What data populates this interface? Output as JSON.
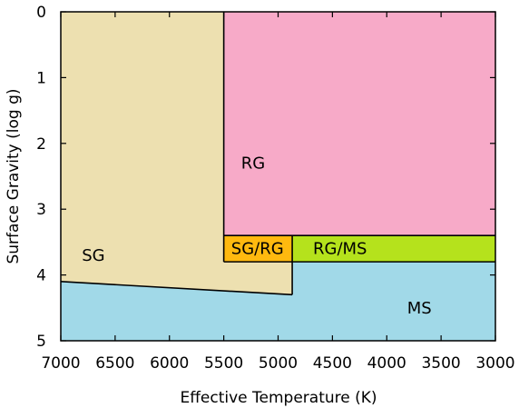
{
  "chart_data": {
    "type": "area",
    "xlabel": "Effective Temperature (K)",
    "ylabel": "Surface Gravity (log g)",
    "xlim": [
      7000,
      3000
    ],
    "ylim": [
      0,
      5
    ],
    "x_reversed": true,
    "y_inverted": true,
    "grid": false,
    "legend": "none",
    "x_ticks": [
      7000,
      6500,
      6000,
      5500,
      5000,
      4500,
      4000,
      3500,
      3000
    ],
    "y_ticks": [
      0,
      1,
      2,
      3,
      4,
      5
    ],
    "x_tick_labels": [
      "7000",
      "6500",
      "6000",
      "5500",
      "5000",
      "4500",
      "4000",
      "3500",
      "3000"
    ],
    "y_tick_labels": [
      "0",
      "1",
      "2",
      "3",
      "4",
      "5"
    ],
    "regions": [
      {
        "name": "MS",
        "color": "#a1d9e8",
        "polygon": [
          [
            7000,
            4.1
          ],
          [
            4870,
            4.3
          ],
          [
            4870,
            3.8
          ],
          [
            3000,
            3.8
          ],
          [
            3000,
            5.0
          ],
          [
            7000,
            5.0
          ]
        ],
        "label": "MS",
        "label_at": [
          3700,
          4.5
        ]
      },
      {
        "name": "SG",
        "color": "#ede0b0",
        "polygon": [
          [
            7000,
            0
          ],
          [
            5500,
            0
          ],
          [
            5500,
            3.8
          ],
          [
            4870,
            3.8
          ],
          [
            4870,
            4.3
          ],
          [
            7000,
            4.1
          ]
        ],
        "label": "SG",
        "label_at": [
          6700,
          3.7
        ]
      },
      {
        "name": "RG",
        "color": "#f7aac8",
        "polygon": [
          [
            5500,
            0
          ],
          [
            3000,
            0
          ],
          [
            3000,
            3.4
          ],
          [
            5500,
            3.4
          ]
        ],
        "label": "RG",
        "label_at": [
          5230,
          2.3
        ]
      },
      {
        "name": "SG/RG",
        "color": "#ffb90f",
        "polygon": [
          [
            5500,
            3.4
          ],
          [
            4870,
            3.4
          ],
          [
            4870,
            3.8
          ],
          [
            5500,
            3.8
          ]
        ],
        "label": "SG/RG",
        "label_at": [
          5190,
          3.6
        ]
      },
      {
        "name": "RG/MS",
        "color": "#b5e21c",
        "polygon": [
          [
            4870,
            3.4
          ],
          [
            3000,
            3.4
          ],
          [
            3000,
            3.8
          ],
          [
            4870,
            3.8
          ]
        ],
        "label": "RG/MS",
        "label_at": [
          4430,
          3.6
        ]
      }
    ],
    "boundaries": [
      [
        [
          5500,
          0
        ],
        [
          5500,
          3.8
        ]
      ],
      [
        [
          5500,
          3.4
        ],
        [
          3000,
          3.4
        ]
      ],
      [
        [
          5500,
          3.8
        ],
        [
          3000,
          3.8
        ]
      ],
      [
        [
          4870,
          3.4
        ],
        [
          4870,
          4.3
        ]
      ],
      [
        [
          7000,
          4.1
        ],
        [
          4870,
          4.3
        ]
      ]
    ]
  }
}
